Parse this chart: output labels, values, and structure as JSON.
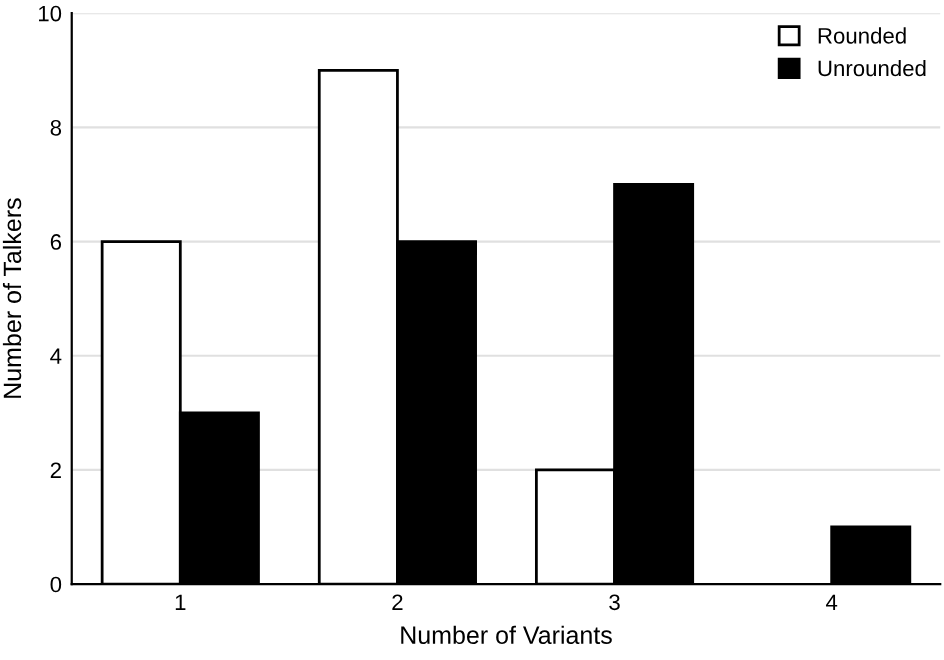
{
  "chart_data": {
    "type": "bar",
    "xlabel": "Number of Variants",
    "ylabel": "Number of Talkers",
    "categories": [
      "1",
      "2",
      "3",
      "4"
    ],
    "series": [
      {
        "name": "Rounded",
        "color": "#ffffff",
        "values": [
          6,
          9,
          2,
          null
        ]
      },
      {
        "name": "Unrounded",
        "color": "#000000",
        "values": [
          3,
          6,
          7,
          1
        ]
      }
    ],
    "ylim": [
      0,
      10
    ],
    "yticks": [
      0,
      2,
      4,
      6,
      8,
      10
    ],
    "grid": "y",
    "legend": "top right"
  }
}
